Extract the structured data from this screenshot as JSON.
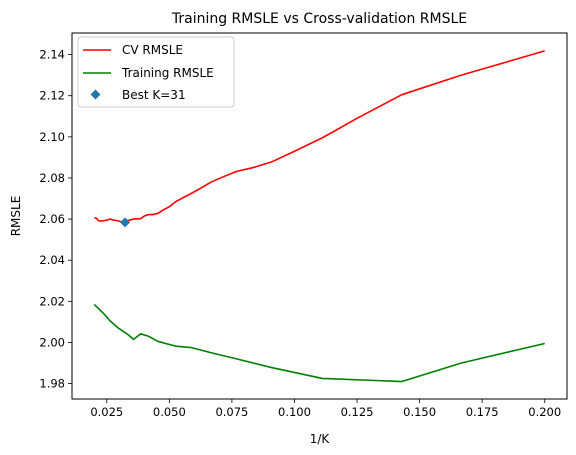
{
  "chart_data": {
    "type": "line",
    "title": "Training RMSLE vs Cross-validation RMSLE",
    "xlabel": "1/K",
    "ylabel": "RMSLE",
    "xlim": [
      0.0111,
      0.2089
    ],
    "ylim": [
      1.9725,
      2.1505
    ],
    "xticks": [
      0.025,
      0.05,
      0.075,
      0.1,
      0.125,
      0.15,
      0.175,
      0.2
    ],
    "xtick_labels": [
      "0.025",
      "0.050",
      "0.075",
      "0.100",
      "0.125",
      "0.150",
      "0.175",
      "0.200"
    ],
    "yticks": [
      1.98,
      2.0,
      2.02,
      2.04,
      2.06,
      2.08,
      2.1,
      2.12,
      2.14
    ],
    "ytick_labels": [
      "1.98",
      "2.00",
      "2.02",
      "2.04",
      "2.06",
      "2.08",
      "2.10",
      "2.12",
      "2.14"
    ],
    "grid": false,
    "legend_position": "top-left",
    "series": [
      {
        "name": "CV RMSLE",
        "color": "#ff0000",
        "x": [
          0.02,
          0.0208,
          0.0217,
          0.0227,
          0.0238,
          0.025,
          0.0263,
          0.0278,
          0.0294,
          0.0312,
          0.0323,
          0.0333,
          0.0357,
          0.0385,
          0.04,
          0.0417,
          0.0435,
          0.0455,
          0.0476,
          0.05,
          0.0526,
          0.0556,
          0.0588,
          0.0625,
          0.0667,
          0.0714,
          0.0769,
          0.0833,
          0.0909,
          0.1,
          0.1111,
          0.125,
          0.1429,
          0.1667,
          0.2
        ],
        "y": [
          2.0605,
          2.0605,
          2.0592,
          2.059,
          2.0592,
          2.0595,
          2.06,
          2.0595,
          2.0592,
          2.0585,
          2.0584,
          2.0592,
          2.06,
          2.0602,
          2.0615,
          2.0622,
          2.0622,
          2.0628,
          2.0645,
          2.066,
          2.0685,
          2.0705,
          2.0725,
          2.075,
          2.078,
          2.0805,
          2.0832,
          2.085,
          2.0878,
          2.093,
          2.0995,
          2.109,
          2.1205,
          2.13,
          2.1418
        ]
      },
      {
        "name": "Training RMSLE",
        "color": "#008000",
        "x": [
          0.02,
          0.0217,
          0.0238,
          0.0263,
          0.0294,
          0.0333,
          0.0357,
          0.0385,
          0.0417,
          0.0455,
          0.05,
          0.0526,
          0.0588,
          0.0667,
          0.0769,
          0.0909,
          0.1111,
          0.1429,
          0.1667,
          0.2
        ],
        "y": [
          2.0185,
          2.0165,
          2.014,
          2.0105,
          2.0072,
          2.004,
          2.0015,
          2.0042,
          2.003,
          2.0005,
          1.999,
          1.9982,
          1.9975,
          1.995,
          1.992,
          1.9878,
          1.9825,
          1.981,
          1.99,
          1.9995
        ]
      }
    ],
    "marker": {
      "name": "Best K=31",
      "color": "#1f77b4",
      "x": 0.0323,
      "y": 2.0584
    }
  }
}
